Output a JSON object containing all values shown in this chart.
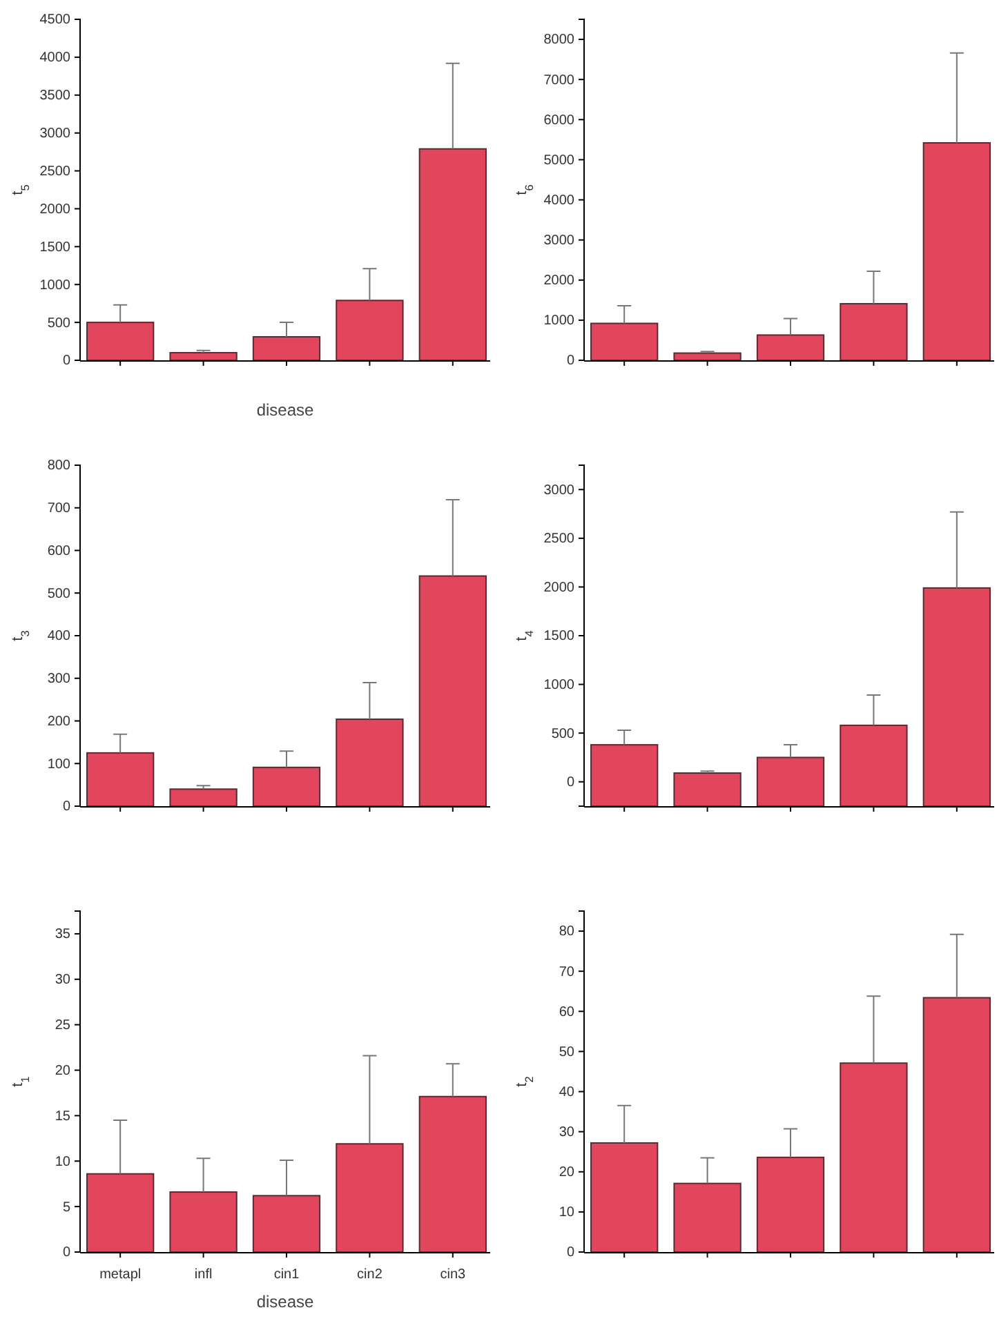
{
  "chart_data": [
    {
      "type": "bar",
      "ylabel": "t$_{5}$",
      "xlabel": "disease",
      "categories": [
        null,
        null,
        null,
        null,
        null
      ],
      "series": [
        {
          "color": "#e2465c",
          "values": [
            500,
            100,
            310,
            790,
            2790
          ],
          "errors": [
            [
              500,
              730
            ],
            [
              100,
              130
            ],
            [
              310,
              500
            ],
            [
              790,
              1210
            ],
            [
              2790,
              3920
            ]
          ]
        }
      ],
      "ylim": [
        0,
        4500
      ],
      "yticks": [
        0,
        500,
        1000,
        1500,
        2000,
        2500,
        3000,
        3500,
        4000,
        4500
      ],
      "grid": false
    },
    {
      "type": "bar",
      "ylabel": "t$_{6}$",
      "categories": [
        null,
        null,
        null,
        null,
        null
      ],
      "series": [
        {
          "color": "#e2465c",
          "values": [
            920,
            180,
            630,
            1410,
            5420
          ],
          "errors": [
            [
              920,
              1360
            ],
            [
              180,
              220
            ],
            [
              630,
              1040
            ],
            [
              1410,
              2220
            ],
            [
              5420,
              7660
            ]
          ]
        }
      ],
      "ylim": [
        0,
        8500
      ],
      "yticks": [
        0,
        1000,
        2000,
        3000,
        4000,
        5000,
        6000,
        7000,
        8000
      ],
      "grid": false
    },
    {
      "type": "bar",
      "ylabel": "t$_{3}$",
      "categories": [
        null,
        null,
        null,
        null,
        null
      ],
      "series": [
        {
          "color": "#e2465c",
          "values": [
            125,
            40,
            91,
            204,
            540
          ],
          "errors": [
            [
              125,
              169
            ],
            [
              40,
              48
            ],
            [
              91,
              129
            ],
            [
              204,
              290
            ],
            [
              540,
              719
            ]
          ]
        }
      ],
      "ylim": [
        0,
        800
      ],
      "yticks": [
        0,
        100,
        200,
        300,
        400,
        500,
        600,
        700,
        800
      ],
      "grid": false
    },
    {
      "type": "bar",
      "ylabel": "t$_{4}$",
      "categories": [
        null,
        null,
        null,
        null,
        null
      ],
      "series": [
        {
          "color": "#e2465c",
          "base": [
            -250,
            -250,
            -250,
            -250,
            -250
          ],
          "values": [
            630,
            340,
            500,
            830,
            2240
          ],
          "errors": [
            [
              380,
              530
            ],
            [
              90,
              110
            ],
            [
              250,
              380
            ],
            [
              580,
              890
            ],
            [
              1990,
              2770
            ]
          ]
        }
      ],
      "ylim": [
        -250,
        3250
      ],
      "yticks": [
        0,
        500,
        1000,
        1500,
        2000,
        2500,
        3000
      ],
      "grid": false
    },
    {
      "type": "bar",
      "ylabel": "t$_{1}$",
      "xlabel": "disease",
      "categories": [
        "metapl",
        "infl",
        "cin1",
        "cin2",
        "cin3"
      ],
      "series": [
        {
          "color": "#e2465c",
          "values": [
            8.6,
            6.6,
            6.2,
            11.9,
            17.1
          ],
          "errors": [
            [
              8.6,
              14.5
            ],
            [
              6.6,
              10.3
            ],
            [
              6.2,
              10.1
            ],
            [
              11.9,
              21.6
            ],
            [
              17.1,
              20.7
            ]
          ]
        }
      ],
      "ylim": [
        0,
        37.5
      ],
      "yticks": [
        0,
        5,
        10,
        15,
        20,
        25,
        30,
        35
      ],
      "grid": false
    },
    {
      "type": "bar",
      "ylabel": "t$_{2}$",
      "categories": [
        null,
        null,
        null,
        null,
        null
      ],
      "series": [
        {
          "color": "#e2465c",
          "values": [
            27.2,
            17.1,
            23.6,
            47.1,
            63.4
          ],
          "errors": [
            [
              27.2,
              36.5
            ],
            [
              17.1,
              23.5
            ],
            [
              23.6,
              30.7
            ],
            [
              47.1,
              63.8
            ],
            [
              63.4,
              79.2
            ]
          ]
        }
      ],
      "ylim": [
        0,
        85
      ],
      "yticks": [
        0,
        10,
        20,
        30,
        40,
        50,
        60,
        70,
        80
      ],
      "grid": false
    }
  ]
}
